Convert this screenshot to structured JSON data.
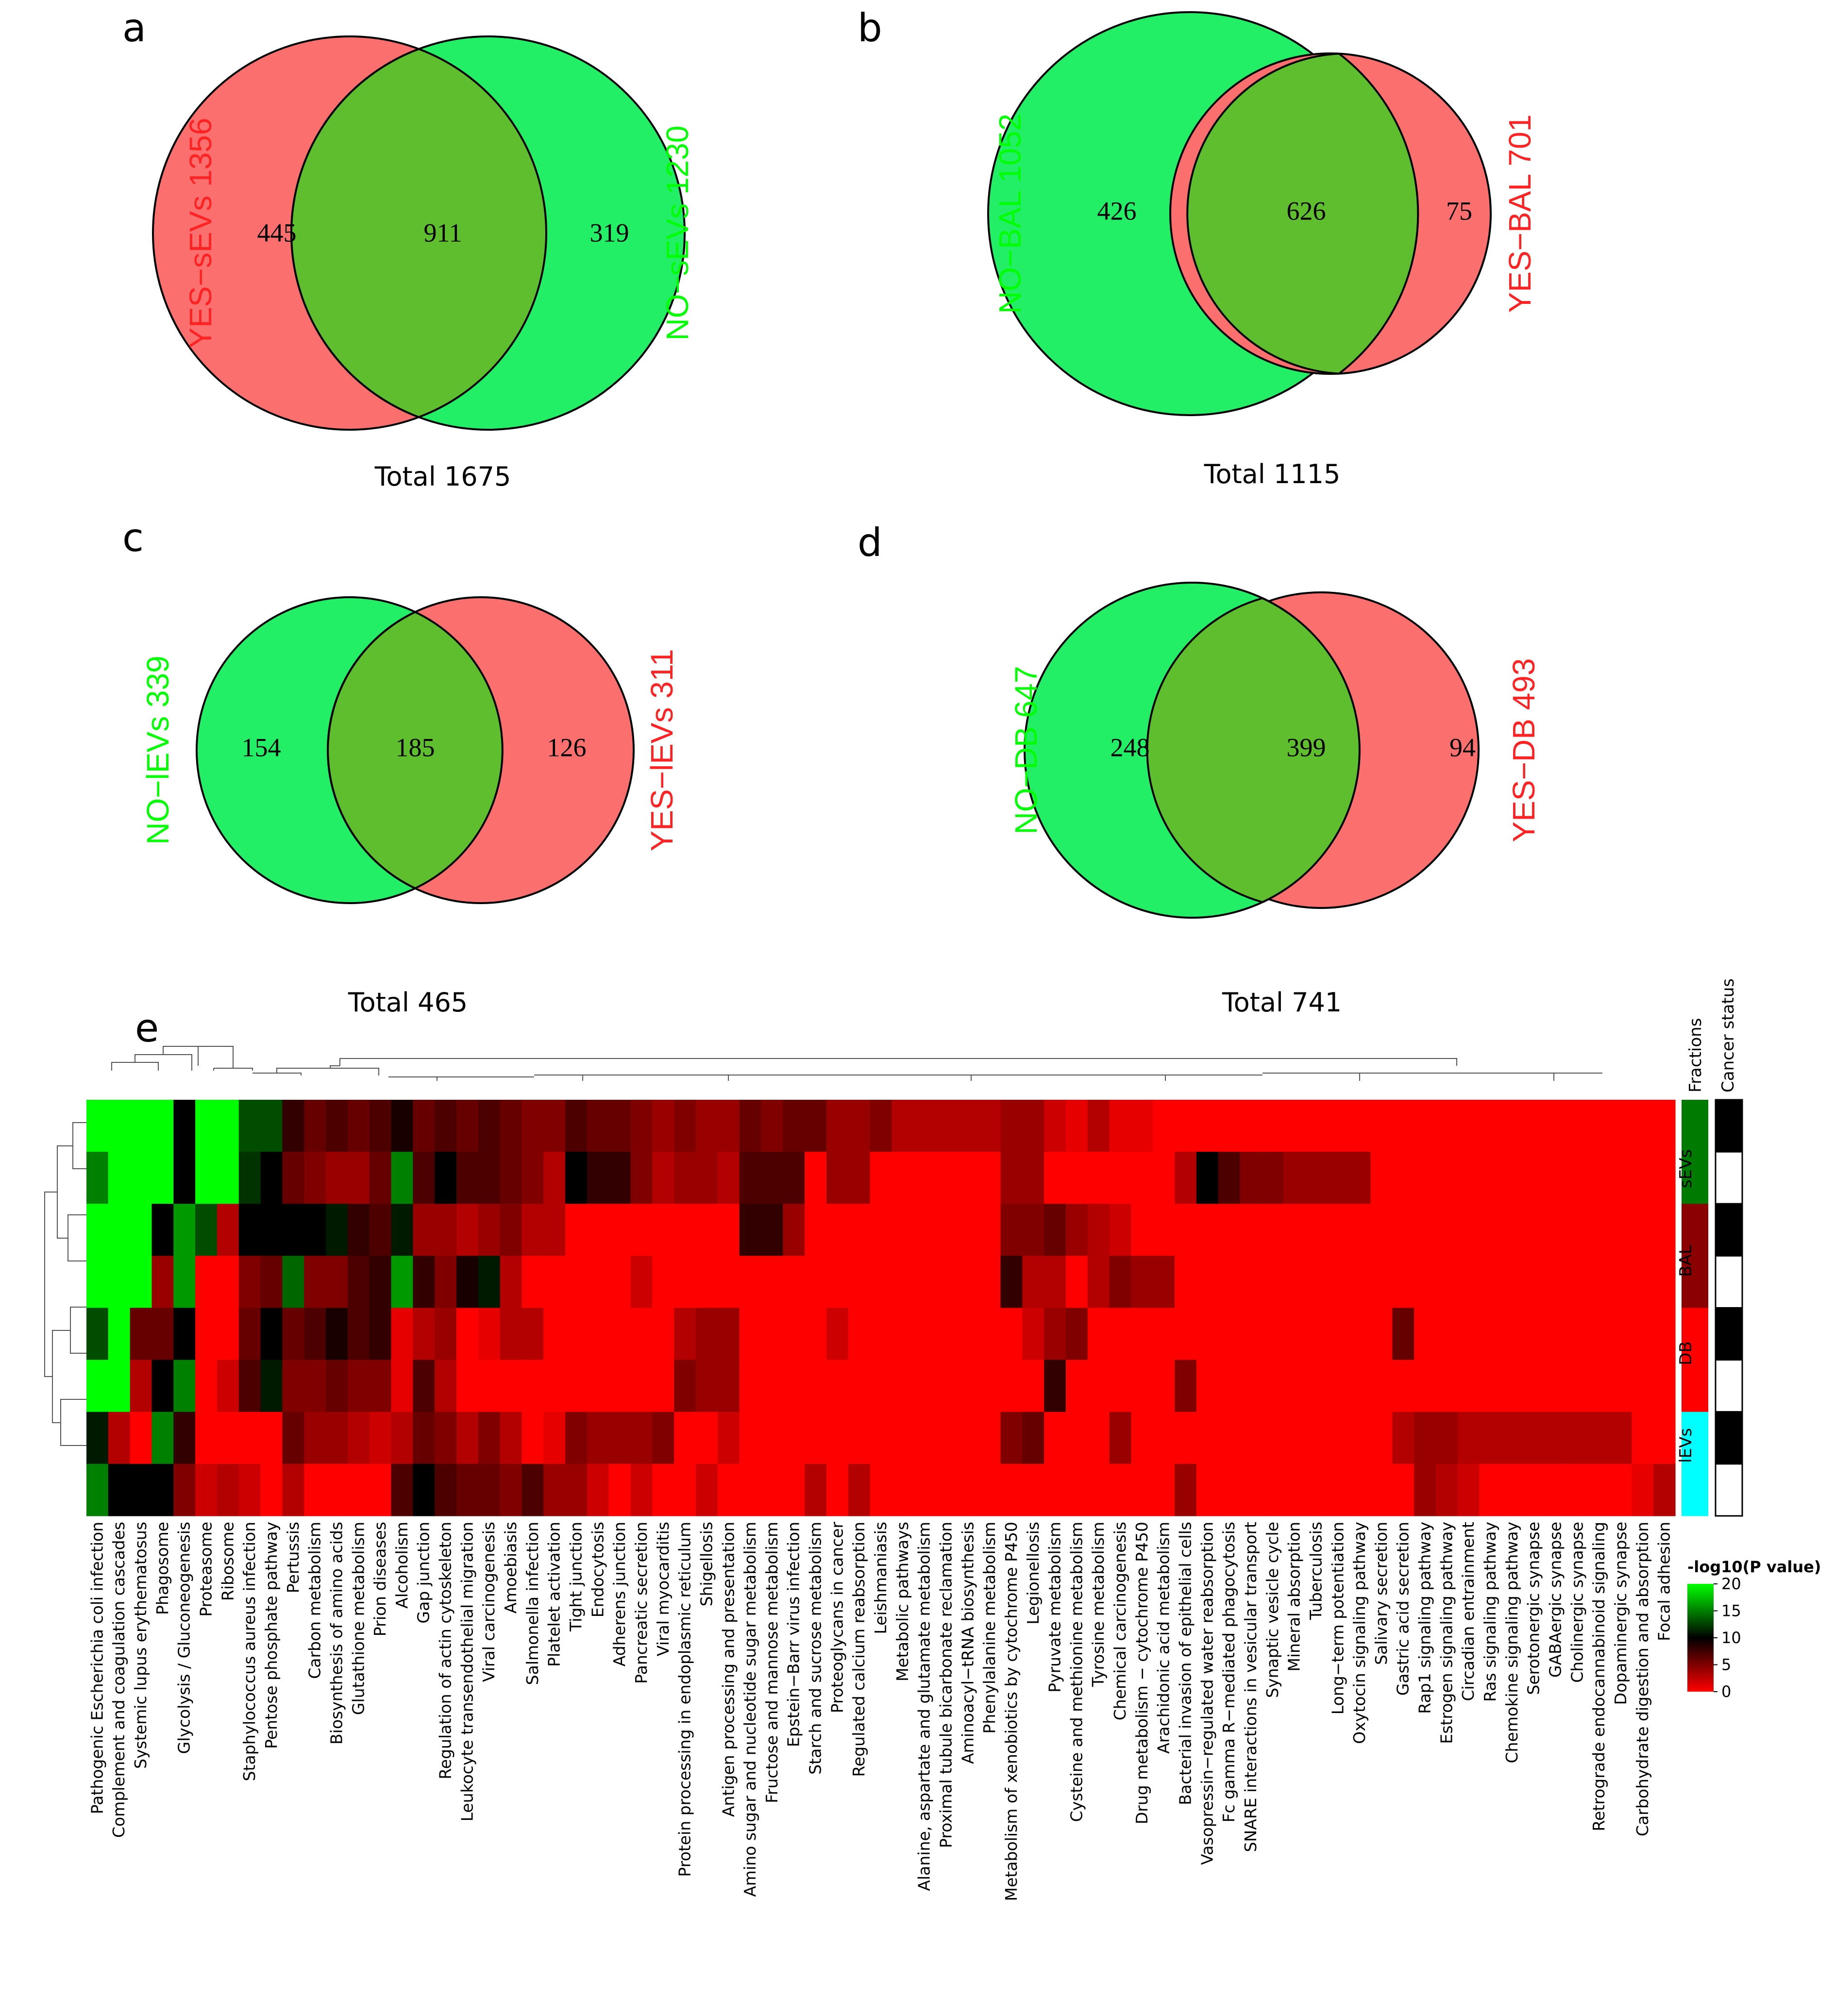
{
  "colors": {
    "green": "#00ff00",
    "red": "#ff0000",
    "yes_fill": "#fb6f6f",
    "no_fill": "#22ee66",
    "overlap_fill": "#5ebe2e",
    "no_label": "#00ff00",
    "yes_label": "#ff2222",
    "sEVs": "#007a00",
    "BAL": "#8b0000",
    "DB": "#ff0000",
    "lEVs": "#00ffff"
  },
  "chart_data": [
    {
      "type": "venn",
      "panel": "a",
      "left_set": {
        "label": "YES−sEVs 1356",
        "group": "yes"
      },
      "right_set": {
        "label": "NO−sEVs 1230",
        "group": "no"
      },
      "left_only": "445",
      "overlap": "911",
      "right_only": "319",
      "total": "Total 1675"
    },
    {
      "type": "venn",
      "panel": "b",
      "left_set": {
        "label": "NO−BAL 1052",
        "group": "no"
      },
      "right_set": {
        "label": "YES−BAL 701",
        "group": "yes"
      },
      "left_only": "426",
      "overlap": "626",
      "right_only": "75",
      "total": "Total 1115"
    },
    {
      "type": "venn",
      "panel": "c",
      "left_set": {
        "label": "NO−lEVs 339",
        "group": "no"
      },
      "right_set": {
        "label": "YES−lEVs 311",
        "group": "yes"
      },
      "left_only": "154",
      "overlap": "185",
      "right_only": "126",
      "total": "Total 465"
    },
    {
      "type": "venn",
      "panel": "d",
      "left_set": {
        "label": "NO−DB 647",
        "group": "no"
      },
      "right_set": {
        "label": "YES−DB 493",
        "group": "yes"
      },
      "left_only": "248",
      "overlap": "399",
      "right_only": "94",
      "total": "Total 741"
    },
    {
      "type": "heatmap",
      "panel": "e",
      "value_label": "-log10(P value)",
      "scale": {
        "min": 0,
        "max": 20,
        "ticks": [
          "20",
          "15",
          "10",
          "5",
          "0"
        ]
      },
      "columns": [
        "Pathogenic Escherichia coli infection",
        "Complement and coagulation cascades",
        "Systemic lupus erythematosus",
        "Phagosome",
        "Glycolysis / Gluconeogenesis",
        "Proteasome",
        "Ribosome",
        "Staphylococcus aureus infection",
        "Pentose phosphate pathway",
        "Pertussis",
        "Carbon metabolism",
        "Biosynthesis of amino acids",
        "Glutathione metabolism",
        "Prion diseases",
        "Alcoholism",
        "Gap junction",
        "Regulation of actin cytoskeleton",
        "Leukocyte transendothelial migration",
        "Viral carcinogenesis",
        "Amoebiasis",
        "Salmonella infection",
        "Platelet activation",
        "Tight junction",
        "Endocytosis",
        "Adherens junction",
        "Pancreatic secretion",
        "Viral myocarditis",
        "Protein processing in endoplasmic reticulum",
        "Shigellosis",
        "Antigen processing and presentation",
        "Amino sugar and nucleotide sugar metabolism",
        "Fructose and mannose metabolism",
        "Epstein−Barr virus infection",
        "Starch and sucrose metabolism",
        "Proteoglycans in cancer",
        "Regulated calcium reabsorption",
        "Leishmaniasis",
        "Metabolic pathways",
        "Alanine, aspartate and glutamate metabolism",
        "Proximal tubule bicarbonate reclamation",
        "Aminoacyl−tRNA biosynthesis",
        "Phenylalanine metabolism",
        "Metabolism of xenobiotics by cytochrome P450",
        "Legionellosis",
        "Pyruvate metabolism",
        "Cysteine and methionine metabolism",
        "Tyrosine metabolism",
        "Chemical carcinogenesis",
        "Drug metabolism − cytochrome P450",
        "Arachidonic acid metabolism",
        "Bacterial invasion of epithelial cells",
        "Vasopressin−regulated water reabsorption",
        "Fc gamma R−mediated phagocytosis",
        "SNARE interactions in vesicular transport",
        "Synaptic vesicle cycle",
        "Mineral absorption",
        "Tuberculosis",
        "Long−term potentiation",
        "Oxytocin signaling pathway",
        "Salivary secretion",
        "Gastric acid secretion",
        "Rap1 signaling pathway",
        "Estrogen signaling pathway",
        "Circadian entrainment",
        "Ras signaling pathway",
        "Chemokine signaling pathway",
        "Serotonergic synapse",
        "GABAergic synapse",
        "Cholinergic synapse",
        "Retrograde endocannabinoid signaling",
        "Dopaminergic synapse",
        "Carbohydrate digestion and absorption",
        "Focal adhesion"
      ],
      "rows": [
        {
          "fraction": "sEVs",
          "cancer": "YES",
          "values": [
            20,
            20,
            20,
            20,
            10,
            20,
            20,
            13,
            13,
            8,
            6,
            7,
            6,
            7,
            9,
            6,
            7,
            6,
            7,
            6,
            5,
            5,
            7,
            6,
            6,
            5,
            4,
            5,
            4,
            4,
            6,
            5,
            6,
            6,
            4,
            4,
            5,
            3,
            3,
            3,
            3,
            3,
            4,
            4,
            2,
            1,
            3,
            1,
            1,
            0,
            0,
            0,
            0,
            0,
            0,
            0,
            0,
            0,
            0,
            0,
            0,
            0,
            0,
            0,
            0,
            0,
            0,
            0,
            0,
            0,
            0,
            0,
            0
          ]
        },
        {
          "fraction": "sEVs",
          "cancer": "NO",
          "values": [
            15,
            20,
            20,
            20,
            10,
            20,
            20,
            12,
            10,
            6,
            5,
            4,
            4,
            6,
            15,
            7,
            10,
            7,
            7,
            6,
            5,
            3,
            10,
            8,
            8,
            5,
            3,
            4,
            4,
            3,
            7,
            7,
            7,
            0,
            4,
            4,
            0,
            0,
            0,
            0,
            0,
            0,
            4,
            4,
            0,
            0,
            0,
            0,
            0,
            0,
            3,
            10,
            7,
            5,
            5,
            4,
            4,
            4,
            4,
            0,
            0,
            0,
            0,
            0,
            0,
            0,
            0,
            0,
            0,
            0,
            0,
            0,
            0
          ]
        },
        {
          "fraction": "BAL",
          "cancer": "YES",
          "values": [
            20,
            20,
            20,
            10,
            16,
            13,
            3,
            10,
            10,
            10,
            10,
            11,
            8,
            7,
            11,
            4,
            4,
            3,
            4,
            5,
            3,
            3,
            0,
            0,
            0,
            0,
            0,
            0,
            0,
            0,
            8,
            8,
            4,
            0,
            0,
            0,
            0,
            0,
            0,
            0,
            0,
            0,
            5,
            5,
            6,
            4,
            3,
            2,
            0,
            0,
            0,
            0,
            0,
            0,
            0,
            0,
            0,
            0,
            0,
            0,
            0,
            0,
            0,
            0,
            0,
            0,
            0,
            0,
            0,
            0,
            0,
            0,
            0
          ]
        },
        {
          "fraction": "BAL",
          "cancer": "NO",
          "values": [
            20,
            20,
            20,
            4,
            16,
            0,
            0,
            5,
            6,
            14,
            5,
            5,
            7,
            8,
            16,
            8,
            5,
            9,
            11,
            3,
            0,
            0,
            0,
            0,
            0,
            2,
            0,
            0,
            0,
            0,
            0,
            0,
            0,
            0,
            0,
            0,
            0,
            0,
            0,
            0,
            0,
            0,
            8,
            3,
            3,
            0,
            3,
            5,
            4,
            4,
            0,
            0,
            0,
            0,
            0,
            0,
            0,
            0,
            0,
            0,
            0,
            0,
            0,
            0,
            0,
            0,
            0,
            0,
            0,
            0,
            0,
            0,
            0
          ]
        },
        {
          "fraction": "DB",
          "cancer": "YES",
          "values": [
            13,
            20,
            6,
            6,
            10,
            0,
            0,
            6,
            10,
            6,
            7,
            9,
            7,
            8,
            1,
            3,
            4,
            0,
            1,
            3,
            3,
            0,
            0,
            0,
            0,
            0,
            0,
            3,
            4,
            4,
            0,
            0,
            0,
            0,
            2,
            0,
            0,
            0,
            0,
            0,
            0,
            0,
            0,
            2,
            4,
            5,
            0,
            0,
            0,
            0,
            0,
            0,
            0,
            0,
            0,
            0,
            0,
            0,
            0,
            0,
            6,
            0,
            0,
            0,
            0,
            0,
            0,
            0,
            0,
            0,
            0,
            0,
            0
          ]
        },
        {
          "fraction": "DB",
          "cancer": "NO",
          "values": [
            20,
            20,
            3,
            10,
            15,
            0,
            2,
            7,
            11,
            5,
            5,
            6,
            5,
            5,
            1,
            7,
            3,
            0,
            0,
            0,
            0,
            0,
            0,
            0,
            0,
            0,
            0,
            5,
            4,
            4,
            0,
            0,
            0,
            0,
            0,
            0,
            0,
            0,
            0,
            0,
            0,
            0,
            0,
            0,
            8,
            0,
            0,
            0,
            0,
            0,
            5,
            0,
            0,
            0,
            0,
            0,
            0,
            0,
            0,
            0,
            0,
            0,
            0,
            0,
            0,
            0,
            0,
            0,
            0,
            0,
            0,
            0,
            0
          ]
        },
        {
          "fraction": "lEVs",
          "cancer": "YES",
          "values": [
            11,
            3,
            0,
            15,
            8,
            0,
            0,
            0,
            0,
            6,
            4,
            4,
            3,
            2,
            3,
            6,
            5,
            3,
            5,
            3,
            0,
            1,
            5,
            4,
            4,
            4,
            5,
            0,
            0,
            2,
            0,
            0,
            0,
            0,
            0,
            0,
            0,
            0,
            0,
            0,
            0,
            0,
            5,
            6,
            0,
            0,
            0,
            4,
            0,
            0,
            0,
            0,
            0,
            0,
            0,
            0,
            0,
            0,
            0,
            0,
            3,
            4,
            4,
            3,
            3,
            3,
            3,
            3,
            3,
            3,
            3,
            0,
            0
          ]
        },
        {
          "fraction": "lEVs",
          "cancer": "NO",
          "values": [
            15,
            10,
            10,
            10,
            5,
            2,
            3,
            2,
            0,
            3,
            0,
            0,
            0,
            0,
            7,
            10,
            7,
            6,
            6,
            5,
            7,
            4,
            4,
            2,
            0,
            2,
            0,
            0,
            2,
            0,
            0,
            0,
            0,
            3,
            0,
            3,
            0,
            0,
            0,
            0,
            0,
            0,
            0,
            0,
            0,
            0,
            0,
            0,
            0,
            0,
            4,
            0,
            0,
            0,
            0,
            0,
            0,
            0,
            0,
            0,
            0,
            4,
            3,
            2,
            0,
            0,
            0,
            0,
            0,
            0,
            0,
            1,
            3
          ]
        }
      ],
      "annotations": {
        "fractions_title": "Fractions",
        "cancer_title": "Cancer status",
        "fraction_labels": [
          "sEVs",
          "BAL",
          "DB",
          "lEVs"
        ],
        "cancer_colors": {
          "YES": "#000000",
          "NO": "#ffffff"
        }
      }
    }
  ]
}
